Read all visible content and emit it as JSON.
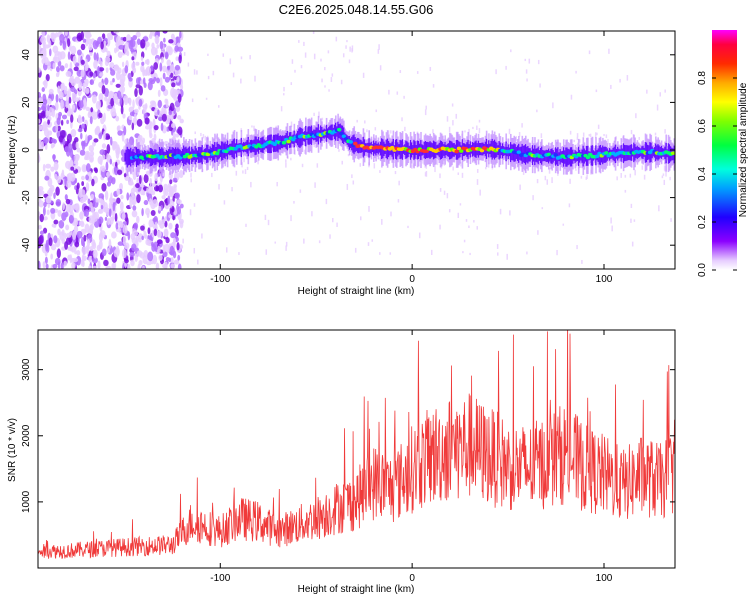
{
  "title": "C2E6.2025.048.14.55.G06",
  "chart_data": [
    {
      "type": "heatmap",
      "xlabel": "Height of straight line (km)",
      "ylabel": "Frequency (Hz)",
      "xlim": [
        -195,
        137
      ],
      "ylim": [
        -50,
        50
      ],
      "xticks": [
        -100,
        0,
        100
      ],
      "yticks": [
        -40,
        -20,
        0,
        20,
        40
      ],
      "colorbar": {
        "label": "Normalized spectral amplitude",
        "range": [
          0,
          1
        ],
        "ticks": [
          "0.0",
          "0.2",
          "0.4",
          "0.6",
          "0.8"
        ]
      },
      "ridge": {
        "x": [
          -150,
          -130,
          -110,
          -90,
          -70,
          -55,
          -45,
          -38,
          -33,
          -25,
          -15,
          0,
          20,
          40,
          60,
          80,
          100,
          115,
          130,
          137
        ],
        "y": [
          -3,
          -3,
          -2,
          1,
          3,
          6,
          7,
          8,
          3,
          1,
          0.5,
          0,
          0,
          0.5,
          -2,
          -3,
          -2,
          -1,
          -1,
          -2
        ]
      },
      "noise_region_x": [
        -195,
        -120
      ]
    },
    {
      "type": "line",
      "xlabel": "Height of straight line (km)",
      "ylabel": "SNR (10 * v/v)",
      "xlim": [
        -195,
        137
      ],
      "ylim": [
        0,
        3600
      ],
      "xticks": [
        -100,
        0,
        100
      ],
      "yticks": [
        1000,
        2000,
        3000
      ],
      "series": [
        {
          "color": "#f03a3a",
          "x": [
            -195,
            -180,
            -160,
            -140,
            -125,
            -115,
            -100,
            -90,
            -80,
            -70,
            -60,
            -50,
            -40,
            -30,
            -20,
            -10,
            0,
            10,
            20,
            30,
            40,
            50,
            60,
            70,
            80,
            90,
            100,
            110,
            120,
            130,
            137
          ],
          "y": [
            250,
            260,
            300,
            330,
            350,
            700,
            550,
            750,
            700,
            550,
            650,
            750,
            900,
            1000,
            1300,
            1200,
            1500,
            1700,
            1800,
            1850,
            1700,
            1550,
            1500,
            1600,
            1750,
            1500,
            1400,
            1250,
            1400,
            1300,
            1500
          ]
        }
      ]
    }
  ]
}
